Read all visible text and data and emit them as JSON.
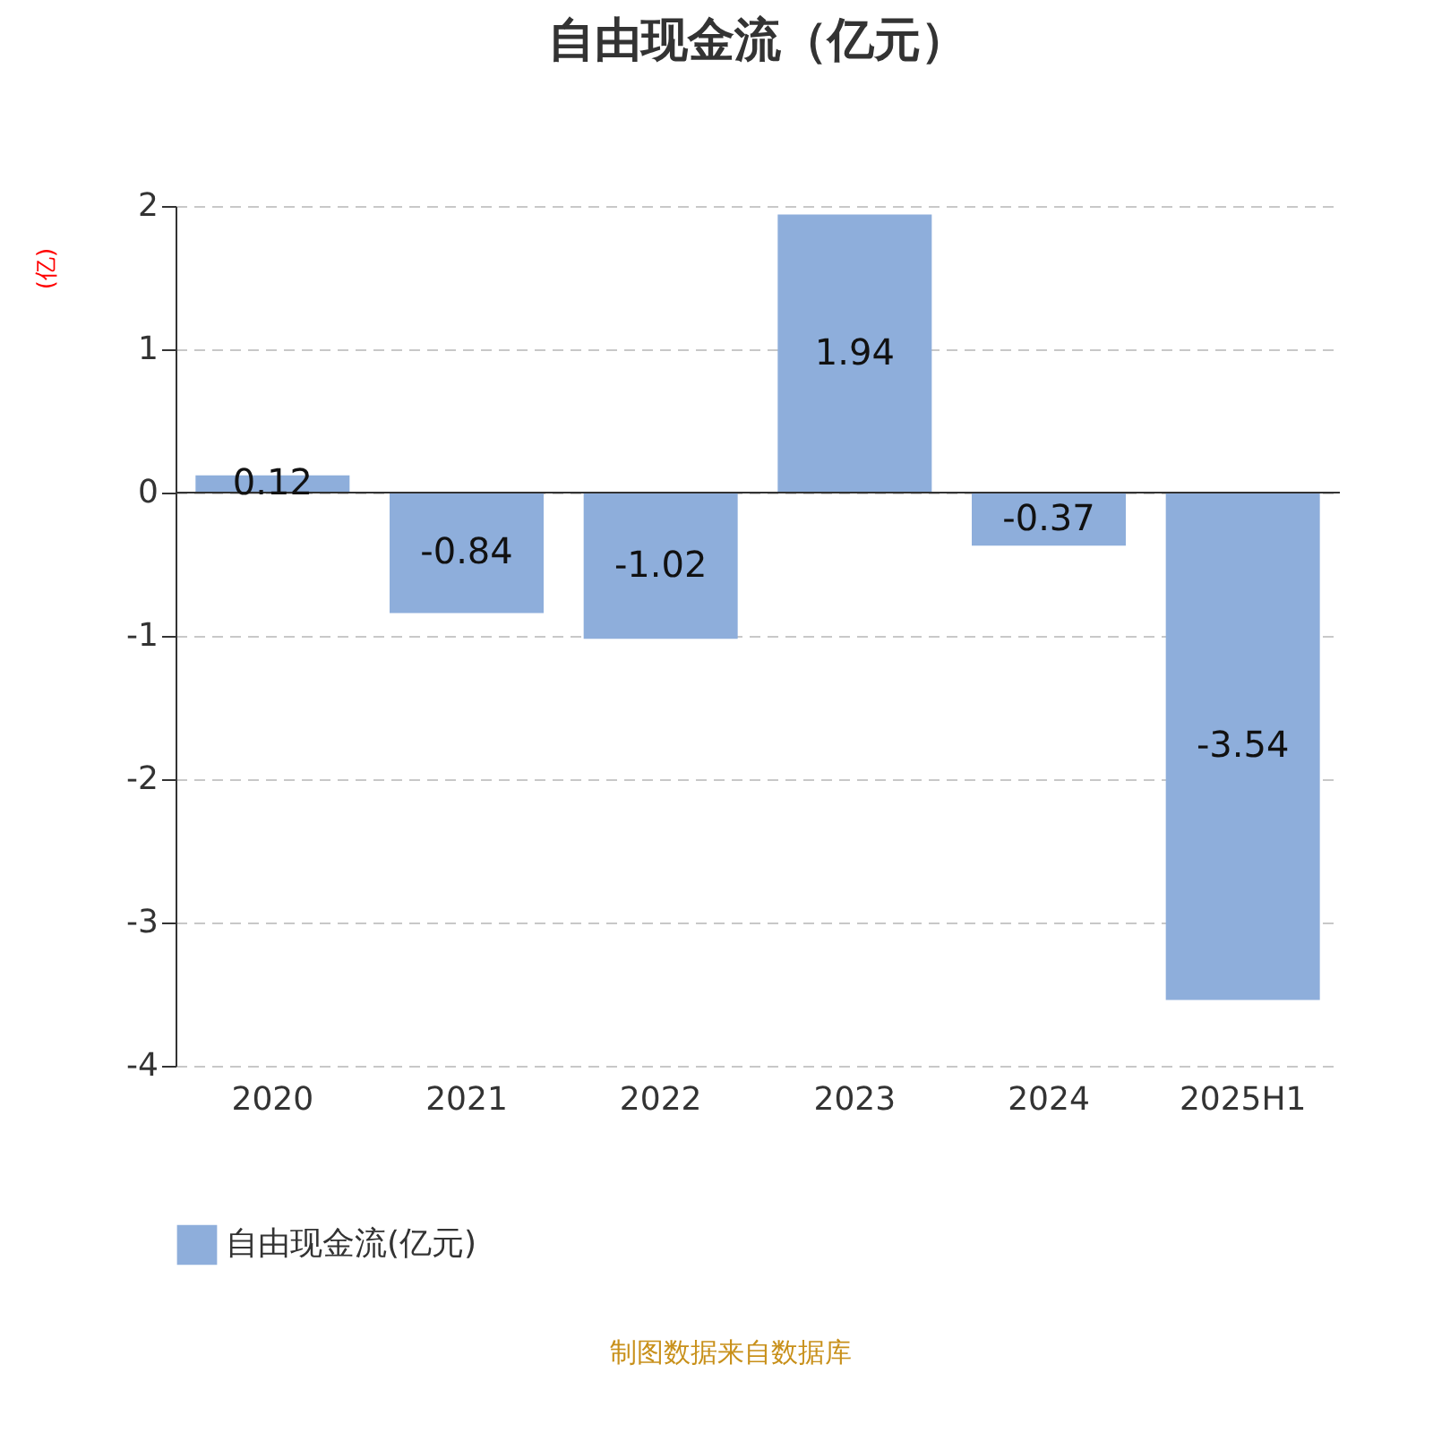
{
  "chart_data": {
    "type": "bar",
    "title": "自由现金流（亿元）",
    "ylabel": "(亿)",
    "categories": [
      "2020",
      "2021",
      "2022",
      "2023",
      "2024",
      "2025H1"
    ],
    "series": [
      {
        "name": "自由现金流(亿元)",
        "color": "#8eaedb",
        "values": [
          0.12,
          -0.84,
          -1.02,
          1.94,
          -0.37,
          -3.54
        ]
      }
    ],
    "ylim": [
      -4,
      2
    ],
    "yticks": [
      -4,
      -3,
      -2,
      -1,
      0,
      1,
      2
    ],
    "grid": "y",
    "legend": "bottom",
    "data_labels": true,
    "annotations": [
      "制图数据来自数据库"
    ]
  }
}
